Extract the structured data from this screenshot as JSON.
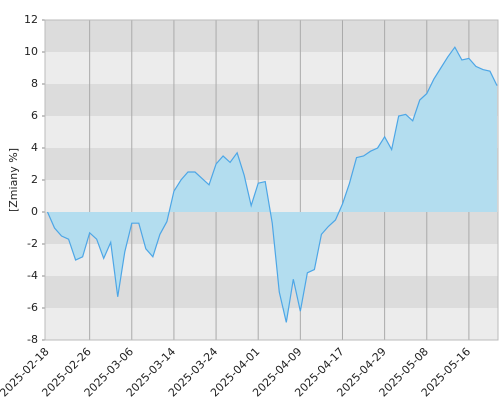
{
  "chart_data": {
    "type": "area",
    "y_label": "[Zmiany %]",
    "categories": [
      "2025-02-18",
      null,
      null,
      null,
      null,
      null,
      "2025-02-26",
      null,
      null,
      null,
      null,
      null,
      "2025-03-06",
      null,
      null,
      null,
      null,
      null,
      "2025-03-14",
      null,
      null,
      null,
      null,
      null,
      "2025-03-24",
      null,
      null,
      null,
      null,
      null,
      "2025-04-01",
      null,
      null,
      null,
      null,
      null,
      "2025-04-09",
      null,
      null,
      null,
      null,
      null,
      "2025-04-17",
      null,
      null,
      null,
      null,
      null,
      "2025-04-29",
      null,
      null,
      null,
      null,
      null,
      "2025-05-08",
      null,
      null,
      null,
      null,
      null,
      "2025-05-16",
      null,
      null,
      null,
      null
    ],
    "series": [
      {
        "color": "#4da6e6",
        "fill": "#b3ddef",
        "values": [
          0,
          -1.0,
          -1.5,
          -1.7,
          -3.0,
          -2.8,
          -1.3,
          -1.7,
          -2.9,
          -1.9,
          -5.3,
          -2.5,
          -0.7,
          -0.7,
          -2.3,
          -2.8,
          -1.4,
          -0.6,
          1.3,
          2.0,
          2.5,
          2.5,
          2.1,
          1.7,
          3.0,
          3.5,
          3.1,
          3.7,
          2.3,
          0.4,
          1.8,
          1.9,
          -0.7,
          -5.0,
          -6.9,
          -4.2,
          -6.2,
          -3.8,
          -3.6,
          -1.4,
          -0.9,
          -0.5,
          0.5,
          1.8,
          3.4,
          3.5,
          3.8,
          4.0,
          4.7,
          3.9,
          6.0,
          6.1,
          5.7,
          7.0,
          7.4,
          8.3,
          9.0,
          9.7,
          10.3,
          9.5,
          9.6,
          9.1,
          8.9,
          8.8,
          7.9
        ]
      }
    ],
    "ylim": [
      -8,
      12
    ],
    "yticks": [
      -8,
      -6,
      -4,
      -2,
      0,
      2,
      4,
      6,
      8,
      10,
      12
    ],
    "band_colors": [
      "#dcdcdc",
      "#ececec"
    ],
    "x_grid": true,
    "x_grid_color": "#aaaaaa"
  }
}
